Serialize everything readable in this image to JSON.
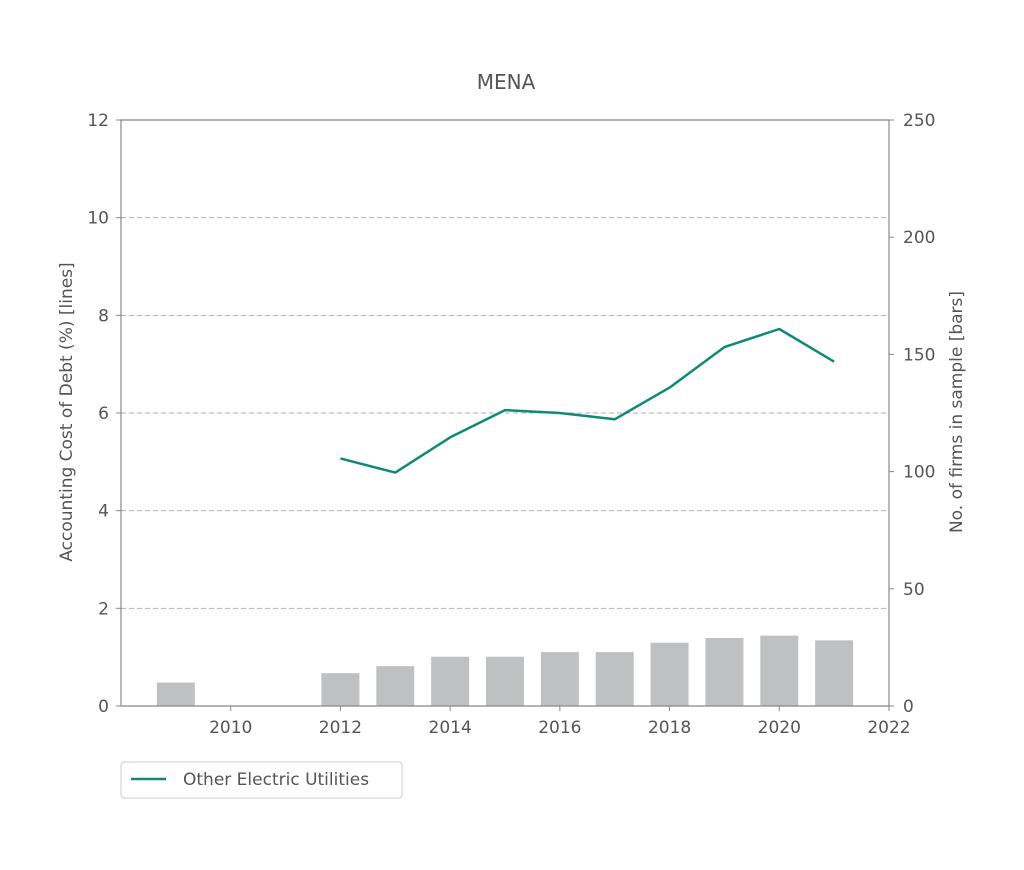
{
  "chart_data": {
    "type": "line",
    "title": "MENA",
    "ylabel": "Accounting Cost of Debt (%) [lines]",
    "ylabel_right": "No. of firms in sample  [bars]",
    "xlabel": "",
    "xlim": [
      2008,
      2022
    ],
    "ylim": [
      0,
      12
    ],
    "ylim_right": [
      0,
      250
    ],
    "x_ticks": [
      "2010",
      "2012",
      "2014",
      "2016",
      "2018",
      "2020",
      "2022"
    ],
    "y_ticks": [
      "0",
      "2",
      "4",
      "6",
      "8",
      "10",
      "12"
    ],
    "y_ticks_right": [
      "0",
      "50",
      "100",
      "150",
      "200",
      "250"
    ],
    "grid": "horizontal dashed",
    "legend_position": "below-left",
    "series": [
      {
        "name": "Other Electric Utilities",
        "color": "#10897b",
        "x": [
          2012,
          2013,
          2014,
          2015,
          2016,
          2017,
          2018,
          2019,
          2020,
          2021
        ],
        "values": [
          5.07,
          4.78,
          5.5,
          6.06,
          6.0,
          5.87,
          6.52,
          7.35,
          7.72,
          7.05
        ]
      }
    ],
    "bars": {
      "color": "#bfc0c1",
      "x": [
        2009,
        2012,
        2013,
        2014,
        2015,
        2016,
        2017,
        2018,
        2019,
        2020,
        2021
      ],
      "values": [
        10,
        14,
        17,
        21,
        21,
        23,
        23,
        27,
        29,
        30,
        28
      ]
    }
  }
}
